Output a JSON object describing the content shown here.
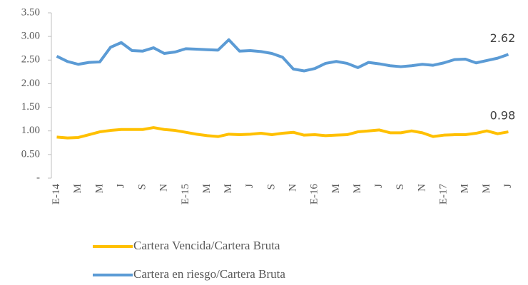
{
  "chart_data": {
    "type": "line",
    "categories": [
      "E-14",
      null,
      "M",
      null,
      "M",
      null,
      "J",
      null,
      "S",
      null,
      "N",
      null,
      "E-15",
      null,
      "M",
      null,
      "M",
      null,
      "J",
      null,
      "S",
      null,
      "N",
      null,
      "E-16",
      null,
      "M",
      null,
      "M",
      null,
      "J",
      null,
      "S",
      null,
      "N",
      null,
      "E-17",
      null,
      "M",
      null,
      "M",
      null,
      "J"
    ],
    "series": [
      {
        "name": "Cartera Vencida/Cartera Bruta",
        "color": "#FFC000",
        "values": [
          0.87,
          0.85,
          0.86,
          0.92,
          0.98,
          1.01,
          1.03,
          1.03,
          1.03,
          1.07,
          1.03,
          1.01,
          0.97,
          0.93,
          0.9,
          0.88,
          0.93,
          0.92,
          0.93,
          0.95,
          0.92,
          0.95,
          0.97,
          0.91,
          0.92,
          0.9,
          0.91,
          0.92,
          0.98,
          1.0,
          1.02,
          0.96,
          0.96,
          1.0,
          0.96,
          0.88,
          0.91,
          0.92,
          0.92,
          0.95,
          1.0,
          0.94,
          0.98
        ]
      },
      {
        "name": "Cartera en riesgo/Cartera Bruta",
        "color": "#5B9BD5",
        "values": [
          2.58,
          2.47,
          2.41,
          2.45,
          2.46,
          2.77,
          2.87,
          2.7,
          2.69,
          2.76,
          2.64,
          2.67,
          2.74,
          2.73,
          2.72,
          2.71,
          2.93,
          2.69,
          2.7,
          2.68,
          2.64,
          2.56,
          2.31,
          2.27,
          2.32,
          2.43,
          2.47,
          2.43,
          2.34,
          2.45,
          2.42,
          2.38,
          2.36,
          2.38,
          2.41,
          2.39,
          2.44,
          2.51,
          2.52,
          2.44,
          2.49,
          2.54,
          2.62
        ]
      }
    ],
    "ylim": [
      0,
      3.5
    ],
    "yticks": [
      {
        "value": 0,
        "label": "-"
      },
      {
        "value": 0.5,
        "label": "0.50"
      },
      {
        "value": 1,
        "label": "1.00"
      },
      {
        "value": 1.5,
        "label": "1.50"
      },
      {
        "value": 2,
        "label": "2.00"
      },
      {
        "value": 2.5,
        "label": "2.50"
      },
      {
        "value": 3,
        "label": "3.00"
      },
      {
        "value": 3.5,
        "label": "3.50"
      }
    ],
    "grid": false,
    "data_labels": "last",
    "legend": "bottom"
  }
}
